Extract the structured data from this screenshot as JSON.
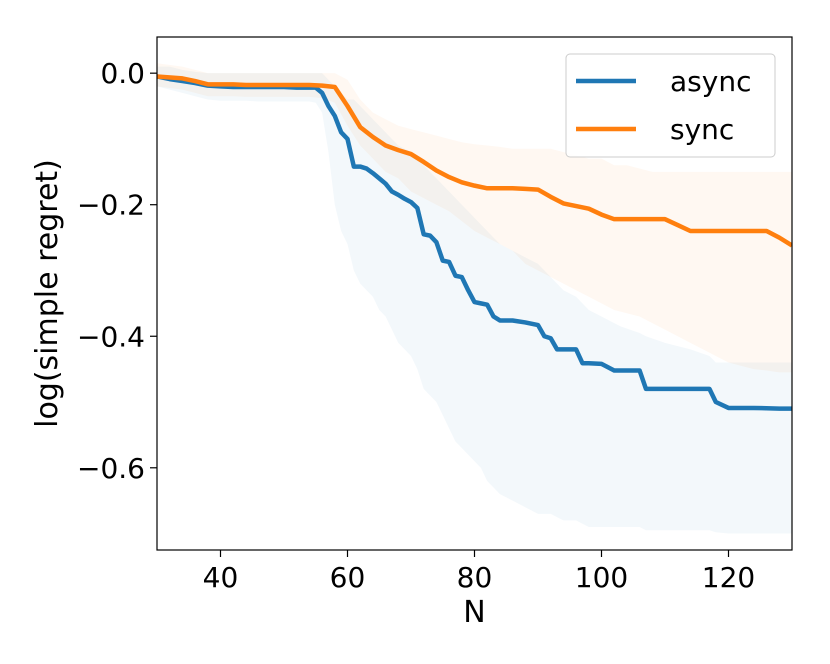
{
  "chart_data": {
    "type": "line",
    "title": "",
    "xlabel": "N",
    "ylabel": "log(simple regret)",
    "xlim": [
      30,
      130
    ],
    "ylim": [
      -0.725,
      0.055
    ],
    "xticks": [
      40,
      60,
      80,
      100,
      120
    ],
    "yticks": [
      0.0,
      -0.2,
      -0.4,
      -0.6
    ],
    "xtick_labels": [
      "40",
      "60",
      "80",
      "100",
      "120"
    ],
    "ytick_labels": [
      "0.0",
      "−0.2",
      "−0.4",
      "−0.6"
    ],
    "grid": false,
    "legend_position": "top-right",
    "series": [
      {
        "name": "async",
        "color": "#1f77b4",
        "x": [
          30,
          32,
          34,
          36,
          38,
          40,
          42,
          44,
          46,
          48,
          50,
          52,
          54,
          55,
          56,
          57,
          58,
          59,
          60,
          61,
          62,
          63,
          64,
          65,
          66,
          67,
          68,
          69,
          70,
          71,
          72,
          73,
          74,
          75,
          76,
          77,
          78,
          79,
          80,
          81,
          82,
          83,
          84,
          86,
          88,
          90,
          91,
          92,
          93,
          94,
          96,
          97,
          98,
          100,
          102,
          103,
          106,
          107,
          110,
          114,
          117,
          118,
          120,
          124,
          128,
          130
        ],
        "y": [
          -0.005,
          -0.009,
          -0.012,
          -0.015,
          -0.019,
          -0.02,
          -0.021,
          -0.021,
          -0.021,
          -0.021,
          -0.021,
          -0.022,
          -0.022,
          -0.022,
          -0.03,
          -0.05,
          -0.065,
          -0.09,
          -0.1,
          -0.142,
          -0.142,
          -0.145,
          -0.152,
          -0.16,
          -0.168,
          -0.18,
          -0.185,
          -0.191,
          -0.196,
          -0.205,
          -0.245,
          -0.247,
          -0.257,
          -0.285,
          -0.287,
          -0.308,
          -0.31,
          -0.33,
          -0.348,
          -0.35,
          -0.352,
          -0.37,
          -0.376,
          -0.376,
          -0.379,
          -0.383,
          -0.4,
          -0.403,
          -0.42,
          -0.42,
          -0.42,
          -0.441,
          -0.441,
          -0.442,
          -0.452,
          -0.452,
          -0.452,
          -0.48,
          -0.48,
          -0.48,
          -0.48,
          -0.5,
          -0.509,
          -0.509,
          -0.51,
          -0.51
        ],
        "lower": [
          -0.02,
          -0.025,
          -0.03,
          -0.035,
          -0.04,
          -0.042,
          -0.042,
          -0.042,
          -0.043,
          -0.043,
          -0.043,
          -0.043,
          -0.043,
          -0.045,
          -0.06,
          -0.12,
          -0.2,
          -0.24,
          -0.26,
          -0.3,
          -0.32,
          -0.33,
          -0.34,
          -0.36,
          -0.37,
          -0.39,
          -0.41,
          -0.42,
          -0.43,
          -0.45,
          -0.48,
          -0.49,
          -0.5,
          -0.52,
          -0.54,
          -0.56,
          -0.57,
          -0.58,
          -0.59,
          -0.6,
          -0.62,
          -0.63,
          -0.64,
          -0.65,
          -0.66,
          -0.67,
          -0.67,
          -0.67,
          -0.675,
          -0.68,
          -0.68,
          -0.685,
          -0.69,
          -0.69,
          -0.69,
          -0.69,
          -0.69,
          -0.695,
          -0.695,
          -0.695,
          -0.695,
          -0.698,
          -0.7,
          -0.7,
          -0.7,
          -0.7
        ],
        "upper": [
          0.01,
          0.01,
          0.005,
          0.002,
          0.0,
          0.0,
          0.0,
          0.0,
          0.0,
          0.0,
          0.0,
          0.0,
          0.0,
          0.0,
          0.0,
          -0.01,
          -0.02,
          -0.03,
          -0.04,
          -0.04,
          -0.05,
          -0.06,
          -0.07,
          -0.08,
          -0.09,
          -0.1,
          -0.11,
          -0.115,
          -0.12,
          -0.13,
          -0.14,
          -0.15,
          -0.16,
          -0.17,
          -0.18,
          -0.19,
          -0.2,
          -0.21,
          -0.22,
          -0.23,
          -0.24,
          -0.25,
          -0.26,
          -0.27,
          -0.28,
          -0.29,
          -0.3,
          -0.31,
          -0.32,
          -0.33,
          -0.34,
          -0.35,
          -0.36,
          -0.37,
          -0.38,
          -0.385,
          -0.395,
          -0.4,
          -0.41,
          -0.42,
          -0.43,
          -0.44,
          -0.44,
          -0.44,
          -0.44,
          -0.44
        ]
      },
      {
        "name": "sync",
        "color": "#ff7f0e",
        "x": [
          30,
          34,
          36,
          38,
          40,
          42,
          44,
          46,
          48,
          50,
          52,
          54,
          56,
          58,
          60,
          62,
          64,
          66,
          68,
          70,
          72,
          74,
          76,
          78,
          80,
          82,
          84,
          86,
          88,
          90,
          92,
          94,
          96,
          98,
          100,
          102,
          104,
          106,
          108,
          110,
          112,
          114,
          116,
          118,
          120,
          122,
          124,
          126,
          128,
          130
        ],
        "y": [
          -0.005,
          -0.008,
          -0.012,
          -0.017,
          -0.017,
          -0.017,
          -0.018,
          -0.018,
          -0.018,
          -0.018,
          -0.018,
          -0.018,
          -0.019,
          -0.021,
          -0.05,
          -0.082,
          -0.097,
          -0.11,
          -0.117,
          -0.123,
          -0.135,
          -0.148,
          -0.158,
          -0.166,
          -0.171,
          -0.175,
          -0.175,
          -0.175,
          -0.176,
          -0.177,
          -0.188,
          -0.198,
          -0.202,
          -0.206,
          -0.215,
          -0.222,
          -0.222,
          -0.222,
          -0.222,
          -0.222,
          -0.231,
          -0.24,
          -0.24,
          -0.24,
          -0.24,
          -0.24,
          -0.24,
          -0.24,
          -0.25,
          -0.262
        ],
        "lower": [
          -0.02,
          -0.025,
          -0.03,
          -0.035,
          -0.035,
          -0.035,
          -0.036,
          -0.036,
          -0.036,
          -0.036,
          -0.036,
          -0.036,
          -0.038,
          -0.045,
          -0.08,
          -0.11,
          -0.13,
          -0.15,
          -0.16,
          -0.18,
          -0.19,
          -0.2,
          -0.21,
          -0.225,
          -0.24,
          -0.25,
          -0.26,
          -0.27,
          -0.29,
          -0.3,
          -0.31,
          -0.32,
          -0.33,
          -0.34,
          -0.35,
          -0.36,
          -0.365,
          -0.37,
          -0.38,
          -0.39,
          -0.4,
          -0.41,
          -0.42,
          -0.43,
          -0.44,
          -0.445,
          -0.45,
          -0.452,
          -0.455,
          -0.455
        ],
        "upper": [
          0.015,
          0.01,
          0.005,
          0.0,
          0.0,
          0.0,
          0.0,
          0.0,
          0.0,
          0.0,
          0.0,
          0.0,
          0.0,
          0.0,
          -0.01,
          -0.04,
          -0.06,
          -0.07,
          -0.08,
          -0.085,
          -0.09,
          -0.095,
          -0.1,
          -0.105,
          -0.108,
          -0.11,
          -0.112,
          -0.115,
          -0.115,
          -0.115,
          -0.115,
          -0.12,
          -0.125,
          -0.13,
          -0.13,
          -0.14,
          -0.14,
          -0.145,
          -0.15,
          -0.15,
          -0.15,
          -0.15,
          -0.15,
          -0.15,
          -0.15,
          -0.15,
          -0.15,
          -0.15,
          -0.15,
          -0.15
        ]
      }
    ]
  }
}
